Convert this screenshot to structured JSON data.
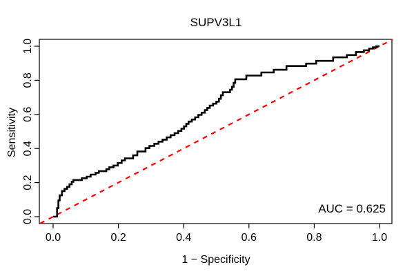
{
  "figure": {
    "title": "SUPV3L1",
    "x_axis_label": "1 − Specificity",
    "y_axis_label": "Sensitivity",
    "auc_annotation": "AUC = 0.625"
  },
  "colors": {
    "roc_curve": "#000000",
    "diagonal": "#FF0000",
    "axis": "#000000",
    "background": "#FFFFFF"
  },
  "chart_data": {
    "type": "line",
    "subtype": "roc-step-curve",
    "title": "SUPV3L1",
    "xlabel": "1 − Specificity",
    "ylabel": "Sensitivity",
    "xlim": [
      0,
      1
    ],
    "ylim": [
      0,
      1
    ],
    "grid": false,
    "legend_position": "none",
    "auc": 0.625,
    "annotation": "AUC = 0.625",
    "x_ticks": [
      0.0,
      0.2,
      0.4,
      0.6,
      0.8,
      1.0
    ],
    "x_tick_labels": [
      "0.0",
      "0.2",
      "0.4",
      "0.6",
      "0.8",
      "1.0"
    ],
    "y_ticks": [
      0.0,
      0.2,
      0.4,
      0.6,
      0.8,
      1.0
    ],
    "y_tick_labels": [
      "0.0",
      "0.2",
      "0.4",
      "0.6",
      "0.8",
      "1.0"
    ],
    "series": [
      {
        "name": "ROC curve",
        "style": "solid-step",
        "color": "#000000",
        "points": [
          [
            0,
            0
          ],
          [
            0.012,
            0
          ],
          [
            0.012,
            0.05
          ],
          [
            0.016,
            0.05
          ],
          [
            0.016,
            0.095
          ],
          [
            0.02,
            0.095
          ],
          [
            0.02,
            0.125
          ],
          [
            0.027,
            0.125
          ],
          [
            0.027,
            0.15
          ],
          [
            0.035,
            0.15
          ],
          [
            0.035,
            0.163
          ],
          [
            0.043,
            0.163
          ],
          [
            0.043,
            0.175
          ],
          [
            0.05,
            0.175
          ],
          [
            0.05,
            0.19
          ],
          [
            0.057,
            0.19
          ],
          [
            0.057,
            0.205
          ],
          [
            0.062,
            0.205
          ],
          [
            0.062,
            0.215
          ],
          [
            0.088,
            0.215
          ],
          [
            0.088,
            0.225
          ],
          [
            0.103,
            0.225
          ],
          [
            0.103,
            0.235
          ],
          [
            0.115,
            0.235
          ],
          [
            0.115,
            0.247
          ],
          [
            0.13,
            0.247
          ],
          [
            0.13,
            0.257
          ],
          [
            0.14,
            0.257
          ],
          [
            0.14,
            0.267
          ],
          [
            0.163,
            0.267
          ],
          [
            0.163,
            0.278
          ],
          [
            0.172,
            0.278
          ],
          [
            0.172,
            0.29
          ],
          [
            0.185,
            0.29
          ],
          [
            0.185,
            0.3
          ],
          [
            0.198,
            0.3
          ],
          [
            0.198,
            0.315
          ],
          [
            0.21,
            0.315
          ],
          [
            0.21,
            0.33
          ],
          [
            0.22,
            0.33
          ],
          [
            0.22,
            0.342
          ],
          [
            0.245,
            0.342
          ],
          [
            0.245,
            0.36
          ],
          [
            0.258,
            0.36
          ],
          [
            0.258,
            0.382
          ],
          [
            0.283,
            0.382
          ],
          [
            0.283,
            0.402
          ],
          [
            0.295,
            0.402
          ],
          [
            0.295,
            0.415
          ],
          [
            0.31,
            0.415
          ],
          [
            0.31,
            0.428
          ],
          [
            0.323,
            0.428
          ],
          [
            0.323,
            0.44
          ],
          [
            0.335,
            0.44
          ],
          [
            0.335,
            0.452
          ],
          [
            0.348,
            0.452
          ],
          [
            0.348,
            0.465
          ],
          [
            0.36,
            0.465
          ],
          [
            0.36,
            0.478
          ],
          [
            0.372,
            0.478
          ],
          [
            0.372,
            0.49
          ],
          [
            0.383,
            0.49
          ],
          [
            0.383,
            0.503
          ],
          [
            0.393,
            0.503
          ],
          [
            0.393,
            0.516
          ],
          [
            0.401,
            0.516
          ],
          [
            0.401,
            0.53
          ],
          [
            0.408,
            0.53
          ],
          [
            0.408,
            0.545
          ],
          [
            0.415,
            0.545
          ],
          [
            0.415,
            0.558
          ],
          [
            0.425,
            0.558
          ],
          [
            0.425,
            0.57
          ],
          [
            0.435,
            0.57
          ],
          [
            0.435,
            0.583
          ],
          [
            0.445,
            0.583
          ],
          [
            0.445,
            0.597
          ],
          [
            0.455,
            0.597
          ],
          [
            0.455,
            0.61
          ],
          [
            0.465,
            0.61
          ],
          [
            0.465,
            0.625
          ],
          [
            0.472,
            0.625
          ],
          [
            0.472,
            0.638
          ],
          [
            0.48,
            0.638
          ],
          [
            0.48,
            0.652
          ],
          [
            0.49,
            0.652
          ],
          [
            0.49,
            0.663
          ],
          [
            0.5,
            0.663
          ],
          [
            0.5,
            0.675
          ],
          [
            0.508,
            0.675
          ],
          [
            0.508,
            0.692
          ],
          [
            0.514,
            0.692
          ],
          [
            0.514,
            0.712
          ],
          [
            0.52,
            0.712
          ],
          [
            0.52,
            0.73
          ],
          [
            0.542,
            0.73
          ],
          [
            0.542,
            0.745
          ],
          [
            0.548,
            0.745
          ],
          [
            0.548,
            0.762
          ],
          [
            0.553,
            0.762
          ],
          [
            0.553,
            0.785
          ],
          [
            0.558,
            0.785
          ],
          [
            0.558,
            0.806
          ],
          [
            0.592,
            0.806
          ],
          [
            0.592,
            0.828
          ],
          [
            0.638,
            0.828
          ],
          [
            0.638,
            0.846
          ],
          [
            0.676,
            0.846
          ],
          [
            0.676,
            0.862
          ],
          [
            0.715,
            0.862
          ],
          [
            0.715,
            0.884
          ],
          [
            0.775,
            0.884
          ],
          [
            0.775,
            0.898
          ],
          [
            0.806,
            0.898
          ],
          [
            0.806,
            0.914
          ],
          [
            0.858,
            0.914
          ],
          [
            0.858,
            0.935
          ],
          [
            0.9,
            0.935
          ],
          [
            0.9,
            0.948
          ],
          [
            0.928,
            0.948
          ],
          [
            0.928,
            0.966
          ],
          [
            0.952,
            0.966
          ],
          [
            0.952,
            0.976
          ],
          [
            0.968,
            0.976
          ],
          [
            0.968,
            0.986
          ],
          [
            0.98,
            0.986
          ],
          [
            0.98,
            0.994
          ],
          [
            0.99,
            0.994
          ],
          [
            0.99,
            1.0
          ],
          [
            1.0,
            1.0
          ]
        ]
      },
      {
        "name": "chance diagonal",
        "style": "dashed-line",
        "color": "#FF0000",
        "points": [
          [
            -0.04,
            -0.04
          ],
          [
            1.04,
            1.04
          ]
        ]
      }
    ]
  }
}
